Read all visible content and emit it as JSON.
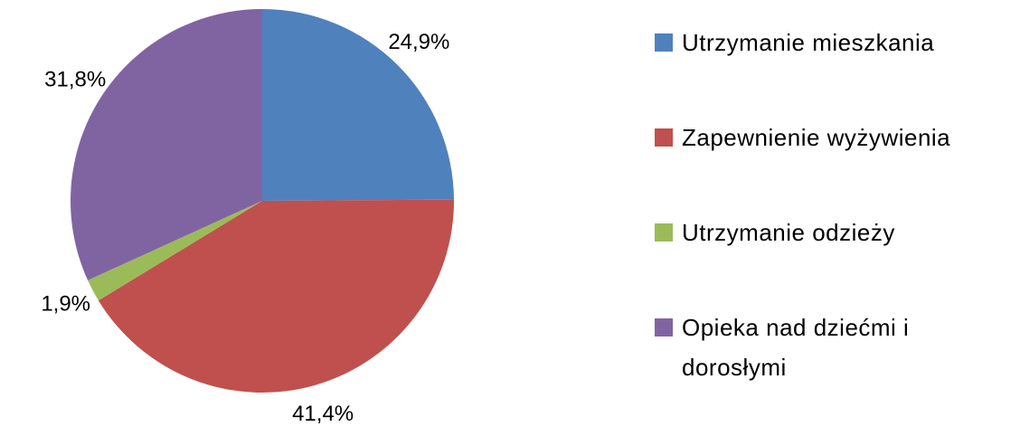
{
  "chart_data": {
    "type": "pie",
    "categories": [
      "Utrzymanie mieszkania",
      "Zapewnienie wyżywienia",
      "Utrzymanie odzieży",
      "Opieka nad dziećmi i dorosłymi"
    ],
    "values": [
      24.9,
      41.4,
      1.9,
      31.8
    ],
    "value_labels": [
      "24,9%",
      "41,4%",
      "1,9%",
      "31,8%"
    ],
    "colors": [
      "#4f81bd",
      "#c0504d",
      "#9bbb59",
      "#8064a2"
    ],
    "legend": "right"
  }
}
